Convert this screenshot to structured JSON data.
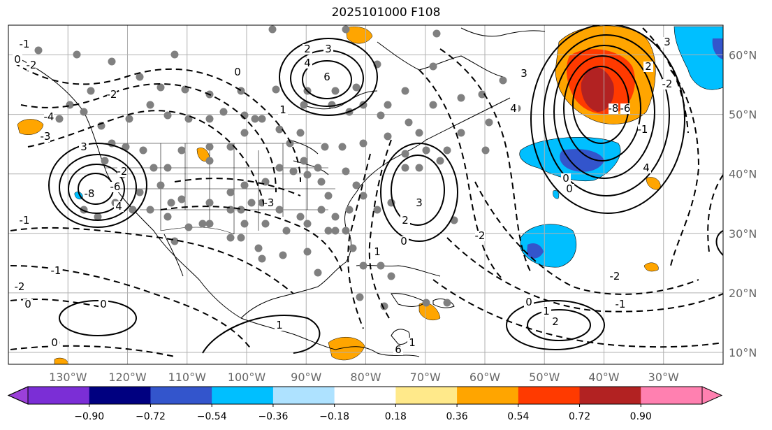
{
  "title": "2025101000 F108",
  "map": {
    "lon_labels": [
      "130°W",
      "120°W",
      "110°W",
      "100°W",
      "90°W",
      "80°W",
      "70°W",
      "60°W",
      "50°W",
      "40°W",
      "30°W"
    ],
    "lat_labels": [
      "60°N",
      "50°N",
      "40°N",
      "30°N",
      "20°N",
      "10°N"
    ],
    "lon_values": [
      -130,
      -120,
      -110,
      -100,
      -90,
      -80,
      -70,
      -60,
      -50,
      -40,
      -30
    ],
    "lat_values": [
      60,
      50,
      40,
      30,
      20,
      10
    ],
    "extent": {
      "lon_min": -140,
      "lon_max": -20,
      "lat_min": 8,
      "lat_max": 65
    },
    "contour_labels": [
      "6",
      "4",
      "3",
      "2",
      "1",
      "0",
      "-1",
      "-2",
      "-3",
      "-4",
      "-6",
      "-8"
    ]
  },
  "colorbar": {
    "ticks": [
      "−0.90",
      "−0.72",
      "−0.54",
      "−0.36",
      "−0.18",
      "0.18",
      "0.36",
      "0.54",
      "0.72",
      "0.90"
    ],
    "colors": [
      "#7b2ed6",
      "#000080",
      "#3355cc",
      "#00bfff",
      "#aee2ff",
      "#ffffff",
      "#ffe98a",
      "#ffa500",
      "#ff3a00",
      "#b22222",
      "#ff80b0"
    ],
    "extend_min_color": "#9b40d9",
    "extend_max_color": "#ff80b0"
  }
}
